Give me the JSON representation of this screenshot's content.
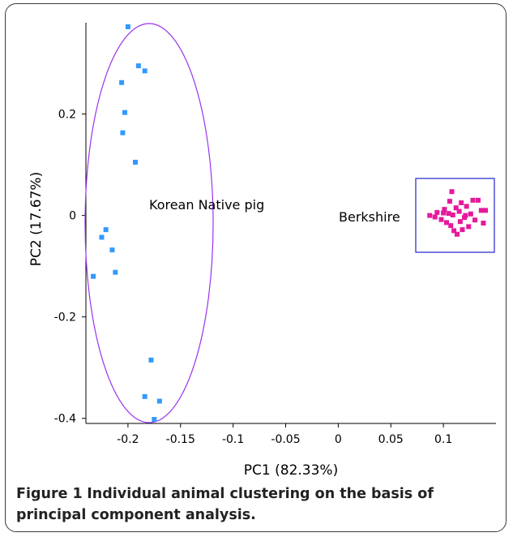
{
  "chart_data": {
    "type": "scatter",
    "xlabel": "PC1 (82.33%)",
    "ylabel": "PC2 (17.67%)",
    "xlim": [
      -0.24,
      0.15
    ],
    "ylim": [
      -0.41,
      0.38
    ],
    "x_ticks": [
      -0.2,
      -0.15,
      -0.1,
      -0.05,
      0,
      0.05,
      0.1
    ],
    "x_tick_labels": [
      "-0.2",
      "-0.15",
      "-0.1",
      "-0.05",
      "0",
      "0.05",
      "0.1"
    ],
    "y_ticks": [
      -0.4,
      -0.2,
      0,
      0.2
    ],
    "y_tick_labels": [
      "-0.4",
      "-0.2",
      "0",
      "0.2"
    ],
    "series": [
      {
        "group_label": "Korean Native pig",
        "color": "#3399ff",
        "points": [
          [
            -0.2,
            0.372
          ],
          [
            -0.19,
            0.295
          ],
          [
            -0.184,
            0.285
          ],
          [
            -0.206,
            0.262
          ],
          [
            -0.203,
            0.203
          ],
          [
            -0.205,
            0.163
          ],
          [
            -0.193,
            0.105
          ],
          [
            -0.221,
            -0.028
          ],
          [
            -0.225,
            -0.043
          ],
          [
            -0.215,
            -0.068
          ],
          [
            -0.212,
            -0.112
          ],
          [
            -0.233,
            -0.12
          ],
          [
            -0.178,
            -0.285
          ],
          [
            -0.184,
            -0.357
          ],
          [
            -0.17,
            -0.366
          ],
          [
            -0.175,
            -0.402
          ]
        ]
      },
      {
        "group_label": "Berkshire",
        "color": "#e6199c",
        "points": [
          [
            0.087,
            0.0
          ],
          [
            0.092,
            -0.003
          ],
          [
            0.094,
            0.006
          ],
          [
            0.098,
            -0.008
          ],
          [
            0.101,
            0.012
          ],
          [
            0.103,
            -0.014
          ],
          [
            0.105,
            0.004
          ],
          [
            0.106,
            0.028
          ],
          [
            0.107,
            -0.02
          ],
          [
            0.108,
            0.047
          ],
          [
            0.109,
            0.001
          ],
          [
            0.11,
            -0.03
          ],
          [
            0.112,
            0.015
          ],
          [
            0.113,
            -0.037
          ],
          [
            0.115,
            0.008
          ],
          [
            0.116,
            -0.012
          ],
          [
            0.117,
            0.025
          ],
          [
            0.12,
            -0.004
          ],
          [
            0.122,
            0.018
          ],
          [
            0.124,
            -0.022
          ],
          [
            0.126,
            0.003
          ],
          [
            0.128,
            0.03
          ],
          [
            0.13,
            -0.009
          ],
          [
            0.133,
            0.03
          ],
          [
            0.136,
            0.01
          ],
          [
            0.14,
            0.01
          ],
          [
            0.138,
            -0.015
          ],
          [
            0.118,
            -0.028
          ],
          [
            0.1,
            0.005
          ],
          [
            0.121,
            0.0
          ]
        ]
      }
    ],
    "annotations": {
      "korean_label": "Korean Native pig",
      "berkshire_label": "Berkshire"
    }
  },
  "caption": {
    "label": "Figure 1",
    "text": "Individual animal clustering on the basis of principal component analysis."
  }
}
